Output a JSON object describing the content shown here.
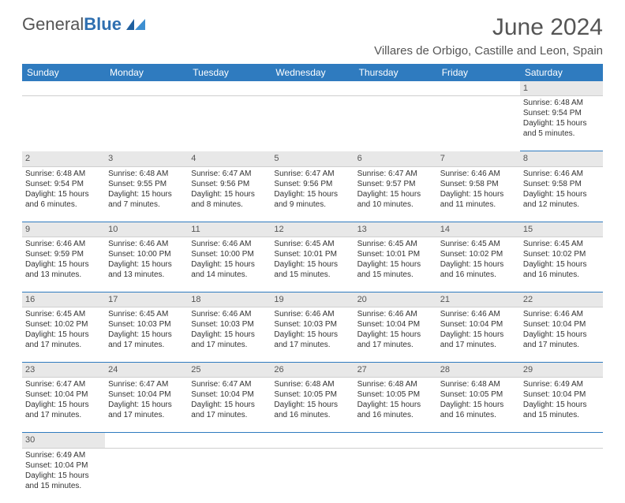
{
  "header": {
    "logo_text1": "General",
    "logo_text2": "Blue",
    "month_title": "June 2024",
    "location": "Villares de Orbigo, Castille and Leon, Spain"
  },
  "styling": {
    "header_bg": "#2f7bbf",
    "header_text": "#ffffff",
    "daynum_bg": "#e8e8e8",
    "border_color": "#2f7bbf",
    "body_text": "#333333",
    "title_color": "#555555",
    "logo_gray": "#555555",
    "logo_blue": "#2f6fb0",
    "title_fontsize": 30,
    "location_fontsize": 15,
    "dayhead_fontsize": 12,
    "cell_fontsize": 10
  },
  "weekdays": [
    "Sunday",
    "Monday",
    "Tuesday",
    "Wednesday",
    "Thursday",
    "Friday",
    "Saturday"
  ],
  "weeks": [
    {
      "nums": [
        "",
        "",
        "",
        "",
        "",
        "",
        "1"
      ],
      "cells": [
        null,
        null,
        null,
        null,
        null,
        null,
        {
          "sunrise": "Sunrise: 6:48 AM",
          "sunset": "Sunset: 9:54 PM",
          "dl1": "Daylight: 15 hours",
          "dl2": "and 5 minutes."
        }
      ]
    },
    {
      "nums": [
        "2",
        "3",
        "4",
        "5",
        "6",
        "7",
        "8"
      ],
      "cells": [
        {
          "sunrise": "Sunrise: 6:48 AM",
          "sunset": "Sunset: 9:54 PM",
          "dl1": "Daylight: 15 hours",
          "dl2": "and 6 minutes."
        },
        {
          "sunrise": "Sunrise: 6:48 AM",
          "sunset": "Sunset: 9:55 PM",
          "dl1": "Daylight: 15 hours",
          "dl2": "and 7 minutes."
        },
        {
          "sunrise": "Sunrise: 6:47 AM",
          "sunset": "Sunset: 9:56 PM",
          "dl1": "Daylight: 15 hours",
          "dl2": "and 8 minutes."
        },
        {
          "sunrise": "Sunrise: 6:47 AM",
          "sunset": "Sunset: 9:56 PM",
          "dl1": "Daylight: 15 hours",
          "dl2": "and 9 minutes."
        },
        {
          "sunrise": "Sunrise: 6:47 AM",
          "sunset": "Sunset: 9:57 PM",
          "dl1": "Daylight: 15 hours",
          "dl2": "and 10 minutes."
        },
        {
          "sunrise": "Sunrise: 6:46 AM",
          "sunset": "Sunset: 9:58 PM",
          "dl1": "Daylight: 15 hours",
          "dl2": "and 11 minutes."
        },
        {
          "sunrise": "Sunrise: 6:46 AM",
          "sunset": "Sunset: 9:58 PM",
          "dl1": "Daylight: 15 hours",
          "dl2": "and 12 minutes."
        }
      ]
    },
    {
      "nums": [
        "9",
        "10",
        "11",
        "12",
        "13",
        "14",
        "15"
      ],
      "cells": [
        {
          "sunrise": "Sunrise: 6:46 AM",
          "sunset": "Sunset: 9:59 PM",
          "dl1": "Daylight: 15 hours",
          "dl2": "and 13 minutes."
        },
        {
          "sunrise": "Sunrise: 6:46 AM",
          "sunset": "Sunset: 10:00 PM",
          "dl1": "Daylight: 15 hours",
          "dl2": "and 13 minutes."
        },
        {
          "sunrise": "Sunrise: 6:46 AM",
          "sunset": "Sunset: 10:00 PM",
          "dl1": "Daylight: 15 hours",
          "dl2": "and 14 minutes."
        },
        {
          "sunrise": "Sunrise: 6:45 AM",
          "sunset": "Sunset: 10:01 PM",
          "dl1": "Daylight: 15 hours",
          "dl2": "and 15 minutes."
        },
        {
          "sunrise": "Sunrise: 6:45 AM",
          "sunset": "Sunset: 10:01 PM",
          "dl1": "Daylight: 15 hours",
          "dl2": "and 15 minutes."
        },
        {
          "sunrise": "Sunrise: 6:45 AM",
          "sunset": "Sunset: 10:02 PM",
          "dl1": "Daylight: 15 hours",
          "dl2": "and 16 minutes."
        },
        {
          "sunrise": "Sunrise: 6:45 AM",
          "sunset": "Sunset: 10:02 PM",
          "dl1": "Daylight: 15 hours",
          "dl2": "and 16 minutes."
        }
      ]
    },
    {
      "nums": [
        "16",
        "17",
        "18",
        "19",
        "20",
        "21",
        "22"
      ],
      "cells": [
        {
          "sunrise": "Sunrise: 6:45 AM",
          "sunset": "Sunset: 10:02 PM",
          "dl1": "Daylight: 15 hours",
          "dl2": "and 17 minutes."
        },
        {
          "sunrise": "Sunrise: 6:45 AM",
          "sunset": "Sunset: 10:03 PM",
          "dl1": "Daylight: 15 hours",
          "dl2": "and 17 minutes."
        },
        {
          "sunrise": "Sunrise: 6:46 AM",
          "sunset": "Sunset: 10:03 PM",
          "dl1": "Daylight: 15 hours",
          "dl2": "and 17 minutes."
        },
        {
          "sunrise": "Sunrise: 6:46 AM",
          "sunset": "Sunset: 10:03 PM",
          "dl1": "Daylight: 15 hours",
          "dl2": "and 17 minutes."
        },
        {
          "sunrise": "Sunrise: 6:46 AM",
          "sunset": "Sunset: 10:04 PM",
          "dl1": "Daylight: 15 hours",
          "dl2": "and 17 minutes."
        },
        {
          "sunrise": "Sunrise: 6:46 AM",
          "sunset": "Sunset: 10:04 PM",
          "dl1": "Daylight: 15 hours",
          "dl2": "and 17 minutes."
        },
        {
          "sunrise": "Sunrise: 6:46 AM",
          "sunset": "Sunset: 10:04 PM",
          "dl1": "Daylight: 15 hours",
          "dl2": "and 17 minutes."
        }
      ]
    },
    {
      "nums": [
        "23",
        "24",
        "25",
        "26",
        "27",
        "28",
        "29"
      ],
      "cells": [
        {
          "sunrise": "Sunrise: 6:47 AM",
          "sunset": "Sunset: 10:04 PM",
          "dl1": "Daylight: 15 hours",
          "dl2": "and 17 minutes."
        },
        {
          "sunrise": "Sunrise: 6:47 AM",
          "sunset": "Sunset: 10:04 PM",
          "dl1": "Daylight: 15 hours",
          "dl2": "and 17 minutes."
        },
        {
          "sunrise": "Sunrise: 6:47 AM",
          "sunset": "Sunset: 10:04 PM",
          "dl1": "Daylight: 15 hours",
          "dl2": "and 17 minutes."
        },
        {
          "sunrise": "Sunrise: 6:48 AM",
          "sunset": "Sunset: 10:05 PM",
          "dl1": "Daylight: 15 hours",
          "dl2": "and 16 minutes."
        },
        {
          "sunrise": "Sunrise: 6:48 AM",
          "sunset": "Sunset: 10:05 PM",
          "dl1": "Daylight: 15 hours",
          "dl2": "and 16 minutes."
        },
        {
          "sunrise": "Sunrise: 6:48 AM",
          "sunset": "Sunset: 10:05 PM",
          "dl1": "Daylight: 15 hours",
          "dl2": "and 16 minutes."
        },
        {
          "sunrise": "Sunrise: 6:49 AM",
          "sunset": "Sunset: 10:04 PM",
          "dl1": "Daylight: 15 hours",
          "dl2": "and 15 minutes."
        }
      ]
    },
    {
      "nums": [
        "30",
        "",
        "",
        "",
        "",
        "",
        ""
      ],
      "cells": [
        {
          "sunrise": "Sunrise: 6:49 AM",
          "sunset": "Sunset: 10:04 PM",
          "dl1": "Daylight: 15 hours",
          "dl2": "and 15 minutes."
        },
        null,
        null,
        null,
        null,
        null,
        null
      ]
    }
  ]
}
